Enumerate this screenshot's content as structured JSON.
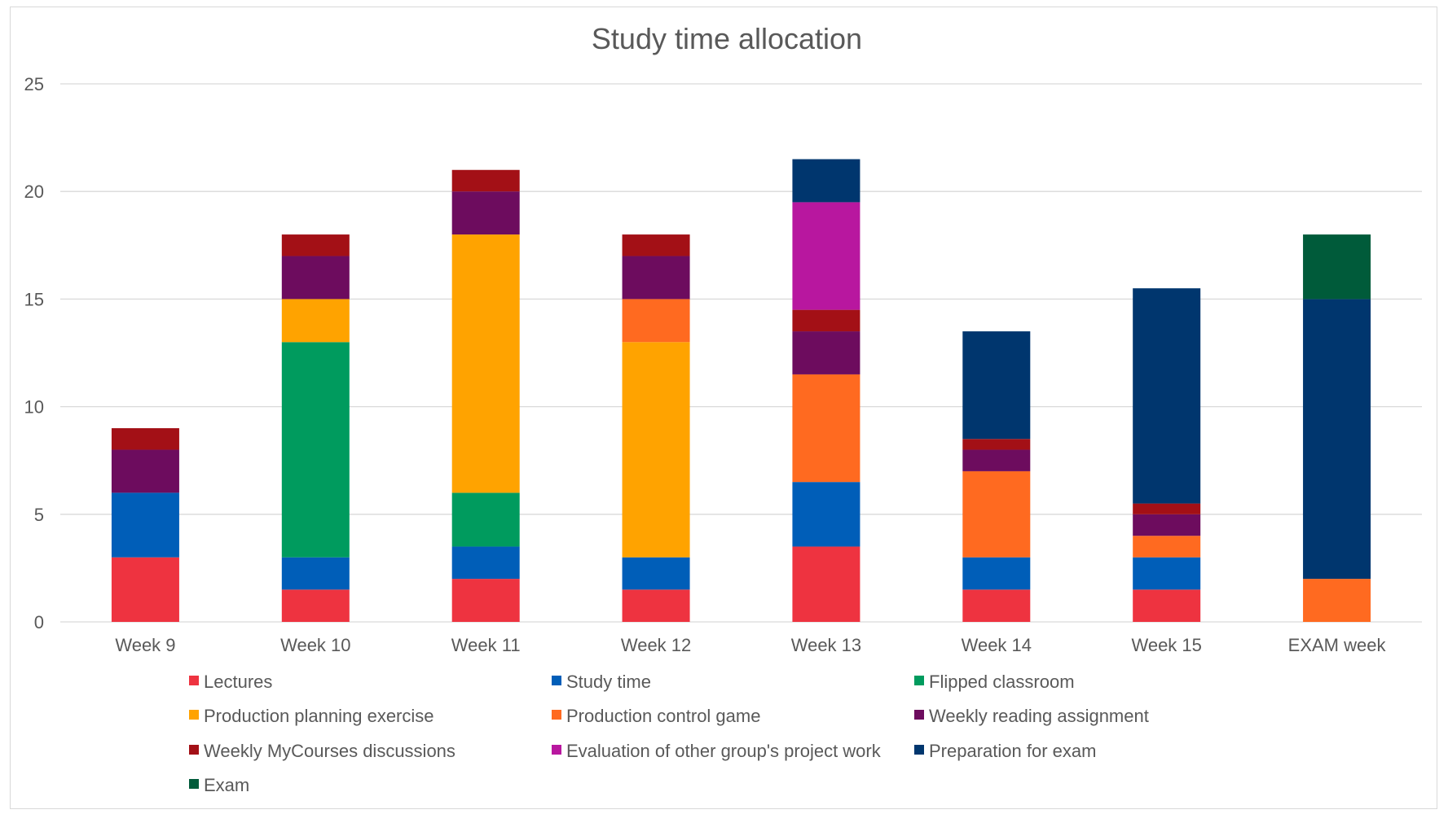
{
  "chart_data": {
    "type": "bar",
    "stacked": true,
    "title": "Study time allocation",
    "xlabel": "",
    "ylabel": "",
    "ylim": [
      0,
      25
    ],
    "yticks": [
      "0",
      "5",
      "10",
      "15",
      "20",
      "25"
    ],
    "grid": true,
    "legend_position": "bottom",
    "categories": [
      "Week 9",
      "Week 10",
      "Week 11",
      "Week 12",
      "Week 13",
      "Week 14",
      "Week 15",
      "EXAM week"
    ],
    "series": [
      {
        "name": "Lectures",
        "color": "#ee3340",
        "values": [
          3,
          1.5,
          2,
          1.5,
          3.5,
          1.5,
          1.5,
          0
        ]
      },
      {
        "name": "Study time",
        "color": "#005eb8",
        "values": [
          3,
          1.5,
          1.5,
          1.5,
          3,
          1.5,
          1.5,
          0
        ]
      },
      {
        "name": "Flipped classroom",
        "color": "#009b5e",
        "values": [
          0,
          10,
          2.5,
          0,
          0,
          0,
          0,
          0
        ]
      },
      {
        "name": "Production planning exercise",
        "color": "#ffa300",
        "values": [
          0,
          2,
          12,
          10,
          0,
          0,
          0,
          0
        ]
      },
      {
        "name": "Production control game",
        "color": "#ff6a20",
        "values": [
          0,
          0,
          0,
          2,
          5,
          4,
          1,
          2
        ]
      },
      {
        "name": "Weekly reading assignment",
        "color": "#6d0c5e",
        "values": [
          2,
          2,
          2,
          2,
          2,
          1,
          1,
          0
        ]
      },
      {
        "name": "Weekly MyCourses discussions",
        "color": "#a31016",
        "values": [
          1,
          1,
          1,
          1,
          1,
          0.5,
          0.5,
          0
        ]
      },
      {
        "name": "Evaluation of other group's project work",
        "color": "#b8179f",
        "values": [
          0,
          0,
          0,
          0,
          5,
          0,
          0,
          0
        ]
      },
      {
        "name": "Preparation for exam",
        "color": "#00366e",
        "values": [
          0,
          0,
          0,
          0,
          2,
          5,
          10,
          13
        ]
      },
      {
        "name": "Exam",
        "color": "#005b3a",
        "values": [
          0,
          0,
          0,
          0,
          0,
          0,
          0,
          3
        ]
      }
    ]
  }
}
